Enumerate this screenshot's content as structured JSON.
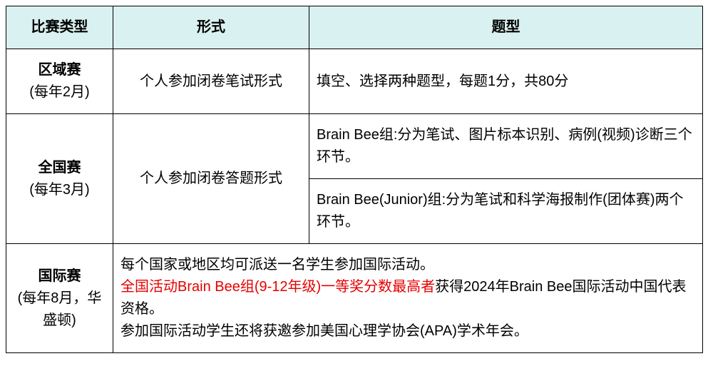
{
  "header": {
    "col_type": "比赛类型",
    "col_form": "形式",
    "col_question": "题型"
  },
  "rows": {
    "regional": {
      "title": "区域赛",
      "sub": "(每年2月)",
      "form": "个人参加闭卷笔试形式",
      "q": "填空、选择两种题型，每题1分，共80分"
    },
    "national": {
      "title": "全国赛",
      "sub": "(每年3月)",
      "form": "个人参加闭卷答题形式",
      "q1": "Brain Bee组:分为笔试、图片标本识别、病例(视频)诊断三个环节。",
      "q2": "Brain Bee(Junior)组:分为笔试和科学海报制作(团体赛)两个环节。"
    },
    "intl": {
      "title": "国际赛",
      "sub": "(每年8月，华盛顿)",
      "line1": "每个国家或地区均可派送一名学生参加国际活动。",
      "line2_red": "全国活动Brain Bee组(9-12年级)一等奖分数最高者",
      "line2_rest": "获得2024年Brain Bee国际活动中国代表资格。",
      "line3": "参加国际活动学生还将获邀参加美国心理学协会(APA)学术年会。"
    }
  }
}
